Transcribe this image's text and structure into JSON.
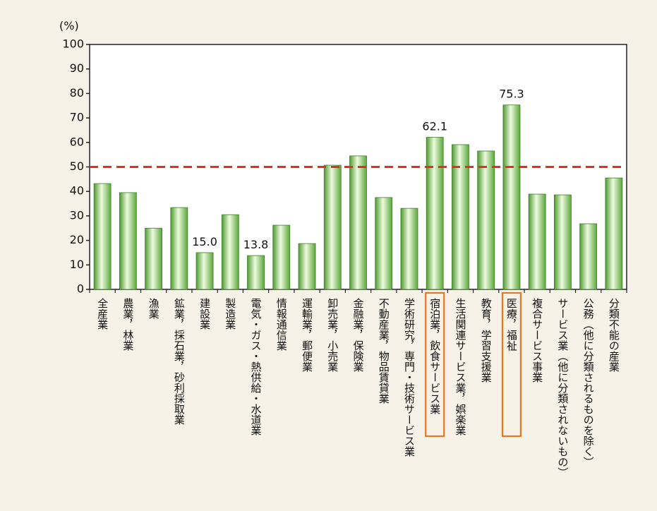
{
  "chart_data": {
    "type": "bar",
    "y_unit": "(%)",
    "categories": [
      "全産業",
      "農業，林業",
      "漁業",
      "鉱業，採石業，砂利採取業",
      "建設業",
      "製造業",
      "電気・ガス・熱供給・水道業",
      "情報通信業",
      "運輸業，郵便業",
      "卸売業，小売業",
      "金融業，保険業",
      "不動産業，物品賃貸業",
      "学術研究，専門・技術サービス業",
      "宿泊業，飲食サービス業",
      "生活関連サービス業，娯楽業",
      "教育，学習支援業",
      "医療，福祉",
      "複合サービス事業",
      "サービス業（他に分類されないもの）",
      "公務（他に分類されるものを除く）",
      "分類不能の産業"
    ],
    "values": [
      43.2,
      39.5,
      25,
      33.4,
      15.0,
      30.5,
      13.8,
      26.2,
      18.7,
      50.7,
      54.5,
      37.5,
      33.1,
      62.1,
      59.1,
      56.5,
      75.3,
      38.9,
      38.6,
      26.8,
      45.5
    ],
    "value_labels": [
      null,
      null,
      null,
      null,
      "15.0",
      null,
      "13.8",
      null,
      null,
      null,
      null,
      null,
      null,
      "62.1",
      null,
      null,
      "75.3",
      null,
      null,
      null,
      null
    ],
    "color": "#a8dc86",
    "ylim": [
      0,
      100
    ],
    "yticks": [
      0,
      10,
      20,
      30,
      40,
      50,
      60,
      70,
      80,
      90,
      100
    ],
    "reference_line": 50,
    "reference_color": "#e03020",
    "highlight": [
      13,
      16
    ],
    "highlight_color": "#e87722"
  }
}
